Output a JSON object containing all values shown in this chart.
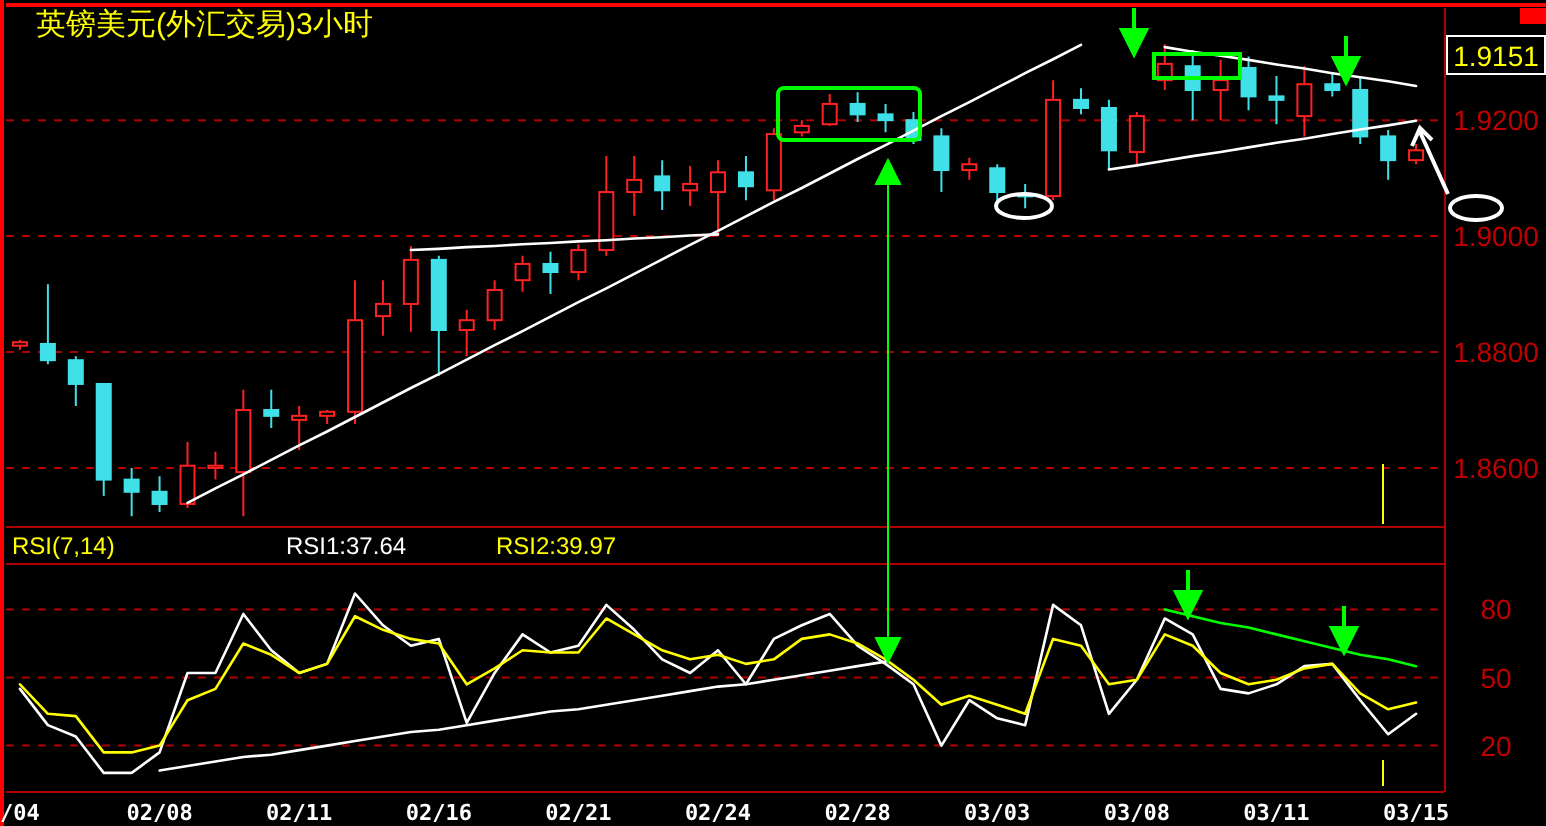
{
  "chart_data": [
    {
      "type": "candlestick",
      "title": "英镑美元(外汇交易)3小时",
      "annotations": [
        "1.9151"
      ],
      "categories": [
        null,
        null,
        null,
        null,
        null,
        null,
        null,
        null,
        null,
        null,
        null,
        null,
        null,
        null,
        null,
        null,
        null,
        null,
        null,
        null,
        null,
        null,
        null,
        null,
        null,
        null,
        null,
        null,
        null,
        null,
        null,
        null,
        null,
        null,
        null,
        null,
        null,
        null,
        null,
        null,
        null,
        null,
        null,
        null,
        null,
        null,
        null,
        null,
        null,
        null,
        null
      ],
      "ohlc": [
        [
          1.8811,
          1.8821,
          1.8804,
          1.8817
        ],
        [
          1.8814,
          1.8917,
          1.8779,
          1.8786
        ],
        [
          1.8786,
          1.8793,
          1.8707,
          1.8745
        ],
        [
          1.8745,
          1.8745,
          1.8552,
          1.858
        ],
        [
          1.858,
          1.86,
          1.8517,
          1.8559
        ],
        [
          1.8559,
          1.8586,
          1.8524,
          1.8538
        ],
        [
          1.8538,
          1.8645,
          1.8531,
          1.8604
        ],
        [
          1.86,
          1.8628,
          1.858,
          1.8604
        ],
        [
          1.8593,
          1.8735,
          1.8517,
          1.87
        ],
        [
          1.87,
          1.8735,
          1.8669,
          1.869
        ],
        [
          1.8683,
          1.8707,
          1.8631,
          1.869
        ],
        [
          1.869,
          1.87,
          1.8676,
          1.8697
        ],
        [
          1.8697,
          1.8924,
          1.8676,
          1.8855
        ],
        [
          1.8862,
          1.8924,
          1.8828,
          1.8883
        ],
        [
          1.8883,
          1.8983,
          1.8835,
          1.8959
        ],
        [
          1.8959,
          1.8966,
          1.8759,
          1.8838
        ],
        [
          1.8838,
          1.8873,
          1.8793,
          1.8855
        ],
        [
          1.8855,
          1.8924,
          1.8838,
          1.8907
        ],
        [
          1.8924,
          1.8966,
          1.8904,
          1.8952
        ],
        [
          1.8952,
          1.8973,
          1.89,
          1.8938
        ],
        [
          1.8938,
          1.8986,
          1.8924,
          1.8976
        ],
        [
          1.8976,
          1.9138,
          1.8966,
          1.9076
        ],
        [
          1.9076,
          1.9138,
          1.9035,
          1.9097
        ],
        [
          1.9103,
          1.9131,
          1.9045,
          1.9079
        ],
        [
          1.9079,
          1.9121,
          1.9052,
          1.909
        ],
        [
          1.9076,
          1.9131,
          1.9,
          1.911
        ],
        [
          1.911,
          1.9138,
          1.9062,
          1.9086
        ],
        [
          1.9079,
          1.9186,
          1.9062,
          1.9176
        ],
        [
          1.9179,
          1.92,
          1.9172,
          1.919
        ],
        [
          1.9193,
          1.9245,
          1.919,
          1.9228
        ],
        [
          1.9228,
          1.9248,
          1.9197,
          1.921
        ],
        [
          1.921,
          1.9228,
          1.9179,
          1.92
        ],
        [
          1.92,
          1.9214,
          1.9159,
          1.9166
        ],
        [
          1.9172,
          1.9186,
          1.9076,
          1.9114
        ],
        [
          1.9114,
          1.9135,
          1.9097,
          1.9124
        ],
        [
          1.9117,
          1.9124,
          1.9052,
          1.9076
        ],
        [
          1.9072,
          1.909,
          1.9048,
          1.9069
        ],
        [
          1.9069,
          1.9269,
          1.9062,
          1.9235
        ],
        [
          1.9235,
          1.9255,
          1.921,
          1.9221
        ],
        [
          1.9221,
          1.9235,
          1.9114,
          1.9148
        ],
        [
          1.9145,
          1.9214,
          1.9124,
          1.9207
        ],
        [
          1.9269,
          1.9331,
          1.9252,
          1.9297
        ],
        [
          1.9293,
          1.9321,
          1.92,
          1.9252
        ],
        [
          1.9252,
          1.9304,
          1.92,
          1.9269
        ],
        [
          1.929,
          1.931,
          1.9217,
          1.9241
        ],
        [
          1.9241,
          1.9276,
          1.9193,
          1.9235
        ],
        [
          1.9207,
          1.9293,
          1.9172,
          1.9262
        ],
        [
          1.9262,
          1.9283,
          1.9241,
          1.9252
        ],
        [
          1.9252,
          1.9276,
          1.9159,
          1.9172
        ],
        [
          1.9172,
          1.9183,
          1.9097,
          1.9131
        ],
        [
          1.9131,
          1.9159,
          1.9124,
          1.9148
        ]
      ],
      "series": [
        {
          "type": "line",
          "color": "#ffffff",
          "values": [
            null,
            null,
            null,
            null,
            null,
            null,
            1.854,
            1.8565,
            1.8589,
            1.8614,
            1.8639,
            1.8663,
            1.8688,
            1.8713,
            1.8738,
            1.8762,
            1.8787,
            1.8812,
            1.8836,
            1.8861,
            1.8886,
            1.891,
            1.8935,
            1.896,
            1.8985,
            1.9009,
            1.9034,
            1.9059,
            1.9083,
            1.9108,
            1.9133,
            1.9157,
            1.9182,
            1.9207,
            1.9231,
            1.9256,
            1.9281,
            1.9305,
            1.933,
            null,
            null,
            null,
            null,
            null,
            null,
            null,
            null,
            null,
            null,
            null,
            null
          ]
        },
        {
          "type": "line",
          "color": "#ffffff",
          "values": [
            null,
            null,
            null,
            null,
            null,
            null,
            null,
            null,
            null,
            null,
            null,
            null,
            null,
            null,
            1.8976,
            1.8978,
            1.8981,
            1.8983,
            1.8986,
            1.8988,
            1.8991,
            1.8993,
            1.8996,
            1.8998,
            1.9001,
            1.9003,
            null,
            null,
            null,
            null,
            null,
            null,
            null,
            null,
            null,
            null,
            null,
            null,
            null,
            null,
            null,
            null,
            null,
            null,
            null,
            null,
            null,
            null,
            null,
            null,
            null
          ]
        },
        {
          "type": "line",
          "color": "#ffffff",
          "values": [
            null,
            null,
            null,
            null,
            null,
            null,
            null,
            null,
            null,
            null,
            null,
            null,
            null,
            null,
            null,
            null,
            null,
            null,
            null,
            null,
            null,
            null,
            null,
            null,
            null,
            null,
            null,
            null,
            null,
            null,
            null,
            null,
            null,
            null,
            null,
            null,
            null,
            null,
            null,
            null,
            null,
            1.9326,
            1.9318,
            1.9311,
            1.9304,
            1.9296,
            1.9289,
            1.9281,
            1.9274,
            1.9267,
            1.9259
          ]
        },
        {
          "type": "line",
          "color": "#ffffff",
          "values": [
            null,
            null,
            null,
            null,
            null,
            null,
            null,
            null,
            null,
            null,
            null,
            null,
            null,
            null,
            null,
            null,
            null,
            null,
            null,
            null,
            null,
            null,
            null,
            null,
            null,
            null,
            null,
            null,
            null,
            null,
            null,
            null,
            null,
            null,
            null,
            null,
            null,
            null,
            null,
            1.9115,
            1.9122,
            1.913,
            1.9138,
            1.9145,
            1.9153,
            1.9161,
            1.9168,
            1.9176,
            1.9184,
            1.9191,
            1.9199
          ]
        }
      ],
      "ylim": [
        1.85,
        1.939
      ],
      "yticks": [
        {
          "value": 1.86,
          "label": "1.8600"
        },
        {
          "value": 1.88,
          "label": "1.8800"
        },
        {
          "value": 1.9,
          "label": "1.9000"
        },
        {
          "value": 1.92,
          "label": "1.9200"
        }
      ],
      "grid": "y",
      "tick_labels": "y"
    },
    {
      "type": "line",
      "legend_title": "RSI(7,14)",
      "legend": "top left",
      "categories": [
        "/04",
        null,
        null,
        null,
        null,
        "02/08",
        null,
        null,
        null,
        null,
        "02/11",
        null,
        null,
        null,
        null,
        "02/16",
        null,
        null,
        null,
        null,
        "02/21",
        null,
        null,
        null,
        null,
        "02/24",
        null,
        null,
        null,
        null,
        "02/28",
        null,
        null,
        null,
        null,
        "03/03",
        null,
        null,
        null,
        null,
        "03/08",
        null,
        null,
        null,
        null,
        "03/11",
        null,
        null,
        null,
        null,
        "03/15"
      ],
      "series": [
        {
          "name": "RSI1:37.64",
          "color": "#ffffff",
          "values": [
            45,
            29,
            24,
            8,
            8,
            17,
            52,
            52,
            78,
            62,
            52,
            56,
            87,
            73,
            64,
            67,
            30,
            52,
            69,
            61,
            64,
            82,
            71,
            58,
            52,
            62,
            47,
            67,
            73,
            78,
            64,
            56,
            47,
            20,
            40,
            32,
            29,
            82,
            73,
            34,
            49,
            76,
            69,
            45,
            43,
            47,
            55,
            56,
            40,
            25,
            34
          ]
        },
        {
          "name": "RSI2:39.97",
          "color": "#ffff00",
          "values": [
            47,
            34,
            33,
            17,
            17,
            20,
            40,
            45,
            65,
            60,
            52,
            56,
            77,
            71,
            67,
            65,
            47,
            54,
            62,
            61,
            61,
            76,
            69,
            62,
            58,
            60,
            56,
            58,
            67,
            69,
            65,
            58,
            49,
            38,
            42,
            38,
            34,
            67,
            64,
            47,
            49,
            69,
            64,
            52,
            47,
            49,
            54,
            56,
            43,
            36,
            39
          ]
        },
        {
          "type": "line",
          "color": "#ffffff",
          "values": [
            null,
            null,
            null,
            null,
            null,
            9,
            11,
            13,
            15,
            16,
            18,
            20,
            22,
            24,
            26,
            27,
            29,
            31,
            33,
            35,
            36,
            38,
            40,
            42,
            44,
            46,
            47,
            49,
            51,
            53,
            55,
            57,
            null,
            null,
            null,
            null,
            null,
            null,
            null,
            null,
            null,
            null,
            null,
            null,
            null,
            null,
            null,
            null,
            null,
            null,
            null
          ]
        },
        {
          "type": "line",
          "color": "#00ff00",
          "values": [
            null,
            null,
            null,
            null,
            null,
            null,
            null,
            null,
            null,
            null,
            null,
            null,
            null,
            null,
            null,
            null,
            null,
            null,
            null,
            null,
            null,
            null,
            null,
            null,
            null,
            null,
            null,
            null,
            null,
            null,
            null,
            null,
            null,
            null,
            null,
            null,
            null,
            null,
            null,
            null,
            null,
            80,
            77,
            74,
            72,
            69,
            66,
            63,
            60,
            58,
            55
          ]
        }
      ],
      "ylim": [
        0,
        100
      ],
      "yticks": [
        20,
        50,
        80
      ],
      "grid": "y"
    }
  ]
}
